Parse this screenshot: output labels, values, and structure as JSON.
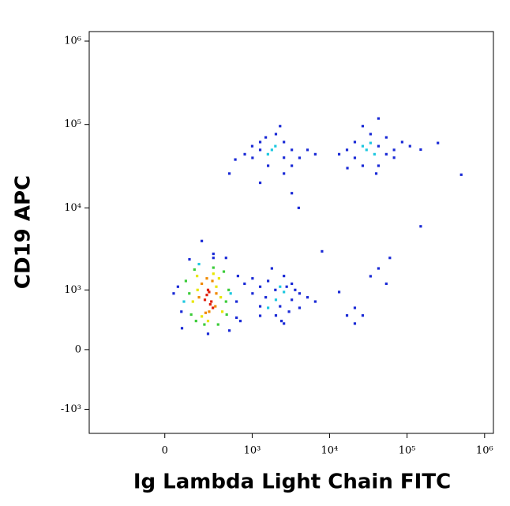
{
  "chart_data": {
    "type": "scatter",
    "xlabel": "Ig Lambda Light Chain FITC",
    "ylabel": "CD19 APC",
    "xscale": "biexponential",
    "yscale": "biexponential",
    "xlim": [
      -700,
      1300000
    ],
    "ylim": [
      -2000,
      1300000
    ],
    "xticks": [
      0,
      {
        "value": 1000,
        "label": "10³"
      },
      {
        "value": 10000,
        "label": "10⁴"
      },
      {
        "value": 100000,
        "label": "10⁵"
      },
      {
        "value": 1000000,
        "label": "10⁶"
      }
    ],
    "yticks": [
      {
        "value": -1000,
        "label": "-10³"
      },
      0,
      {
        "value": 1000,
        "label": "10³"
      },
      {
        "value": 10000,
        "label": "10⁴"
      },
      {
        "value": 100000,
        "label": "10⁵"
      },
      {
        "value": 1000000,
        "label": "10⁶"
      }
    ],
    "series": [
      {
        "color": "#1a2ad6",
        "x": [
          77,
          60,
          623,
          795,
          623,
          120,
          450,
          300,
          80,
          500,
          250,
          650,
          40,
          700,
          1010,
          1270,
          1010,
          1270,
          1610,
          2580,
          3260,
          4100,
          1270,
          2030,
          2580,
          3260,
          4100,
          5200,
          1800,
          2300,
          3000,
          1500,
          2800,
          3600,
          2000,
          2400,
          6550,
          13300,
          16800,
          21200,
          26800,
          33800,
          42800,
          54000,
          21200,
          1270,
          1010,
          2580,
          3260,
          1610,
          2030,
          1270,
          800,
          4100,
          3260,
          2300,
          1000,
          2580,
          5200,
          6550,
          600,
          1500,
          16800,
          21200,
          42800,
          54000,
          26800,
          33800,
          68000,
          86400,
          13300,
          21200,
          42800,
          54000,
          26800,
          109000,
          42800,
          68000,
          17000,
          150000,
          250000,
          500000,
          40000,
          500,
          2580,
          1270,
          3260,
          200,
          300,
          150000,
          8000,
          60000,
          4000
        ],
        "y": [
          500,
          1100,
          700,
          1200,
          400,
          2400,
          2500,
          2800,
          250,
          220,
          180,
          1500,
          900,
          350,
          900,
          600,
          1400,
          1100,
          1300,
          1500,
          740,
          900,
          430,
          435,
          313,
          1200,
          570,
          800,
          1860,
          600,
          500,
          800,
          1100,
          1000,
          1000,
          350,
          700,
          940,
          435,
          570,
          435,
          1490,
          1860,
          1200,
          313,
          49600,
          39800,
          61600,
          49600,
          32000,
          76700,
          61600,
          44000,
          39800,
          32000,
          95600,
          55000,
          40000,
          49600,
          44000,
          38000,
          70000,
          49600,
          39800,
          55000,
          44000,
          32000,
          76700,
          49600,
          61600,
          44000,
          61600,
          32000,
          70000,
          95600,
          55000,
          118000,
          40000,
          30000,
          50000,
          60000,
          25000,
          25800,
          25800,
          25800,
          20000,
          15000,
          4000,
          2500,
          6000,
          3000,
          2500,
          10000
        ]
      },
      {
        "color": "#1ec8e0",
        "x": [
          90,
          520,
          180,
          2030,
          2580,
          1610,
          2300,
          1800,
          2000,
          1600,
          30000,
          26800,
          38000,
          33800
        ],
        "y": [
          700,
          900,
          2100,
          740,
          940,
          570,
          1100,
          49600,
          55000,
          44000,
          49600,
          55000,
          44000,
          60000
        ]
      },
      {
        "color": "#3ccc3a",
        "x": [
          119,
          450,
          150,
          420,
          130,
          489,
          220,
          350,
          100,
          300,
          160,
          460
        ],
        "y": [
          900,
          700,
          1800,
          1700,
          450,
          1000,
          300,
          300,
          1300,
          1900,
          350,
          450
        ]
      },
      {
        "color": "#e8e600",
        "x": [
          167,
          381,
          200,
          300,
          140,
          400,
          330,
          250,
          170,
          360
        ],
        "y": [
          1500,
          800,
          420,
          1600,
          700,
          500,
          1100,
          350,
          1000,
          1400
        ]
      },
      {
        "color": "#f08a00",
        "x": [
          200,
          320,
          230,
          290,
          180,
          330,
          260,
          240
        ],
        "y": [
          1200,
          600,
          480,
          1300,
          800,
          900,
          500,
          1400
        ]
      },
      {
        "color": "#e0200c",
        "x": [
          224,
          260,
          295,
          240,
          280,
          250,
          270
        ],
        "y": [
          740,
          940,
          570,
          860,
          700,
          1000,
          640
        ]
      }
    ]
  }
}
